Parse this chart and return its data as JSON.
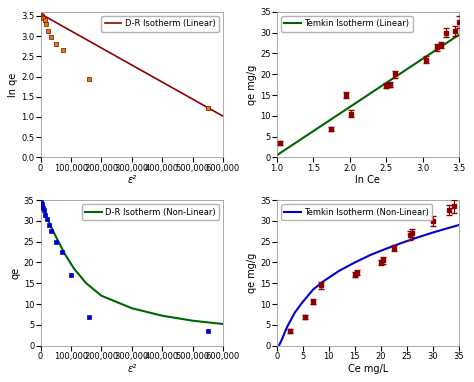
{
  "dr_linear": {
    "title": "D-R Isotherm (Linear)",
    "xlabel": "ε²",
    "ylabel": "ln qe",
    "line_color": "#8B0000",
    "point_color": "#CC8800",
    "point_edge": "#8B0000",
    "xlim": [
      0,
      600000
    ],
    "ylim": [
      0.0,
      3.6
    ],
    "scatter_x": [
      1000,
      3000,
      6000,
      9000,
      13000,
      18000,
      25000,
      35000,
      50000,
      75000,
      160000,
      550000
    ],
    "scatter_y": [
      3.52,
      3.5,
      3.47,
      3.44,
      3.4,
      3.3,
      3.13,
      2.98,
      2.8,
      2.66,
      1.93,
      1.22
    ],
    "line_x": [
      0,
      600000
    ],
    "line_y": [
      3.55,
      1.02
    ]
  },
  "temkin_linear": {
    "title": "Temkin Isotherm (Linear)",
    "xlabel": "ln Ce",
    "ylabel": "qe mg/g",
    "line_color": "#006400",
    "point_color": "#8B0000",
    "xlim": [
      1.0,
      3.5
    ],
    "ylim": [
      0,
      35
    ],
    "scatter_x": [
      1.05,
      1.75,
      1.95,
      2.02,
      2.5,
      2.55,
      2.62,
      3.05,
      3.2,
      3.25,
      3.32,
      3.45,
      3.5
    ],
    "scatter_y": [
      3.5,
      6.8,
      15.0,
      10.5,
      17.2,
      17.5,
      20.0,
      23.5,
      26.5,
      27.0,
      30.0,
      30.5,
      32.5
    ],
    "line_x": [
      1.0,
      3.5
    ],
    "line_y": [
      0.5,
      29.5
    ],
    "yerr": [
      0.5,
      0.5,
      0.8,
      0.8,
      0.6,
      0.6,
      0.8,
      0.8,
      0.8,
      0.8,
      1.0,
      1.2,
      1.5
    ]
  },
  "dr_nonlinear": {
    "title": "D-R Isotherm (Non-Linear)",
    "xlabel": "ε²",
    "ylabel": "qe",
    "line_color": "#006400",
    "point_color": "#0000CD",
    "xlim": [
      0,
      600000
    ],
    "ylim": [
      0,
      35
    ],
    "scatter_x": [
      1000,
      3000,
      5000,
      8000,
      11000,
      15000,
      20000,
      27000,
      35000,
      50000,
      70000,
      100000,
      160000,
      550000
    ],
    "scatter_y": [
      34.5,
      34.0,
      33.5,
      33.0,
      32.5,
      31.5,
      30.5,
      29.0,
      27.5,
      25.0,
      22.5,
      17.0,
      7.0,
      3.5
    ],
    "curve_x": [
      500,
      2000,
      5000,
      10000,
      20000,
      35000,
      55000,
      80000,
      110000,
      150000,
      200000,
      300000,
      400000,
      500000,
      600000
    ],
    "curve_y": [
      34.9,
      34.6,
      34.0,
      33.0,
      31.0,
      28.5,
      25.5,
      22.0,
      18.5,
      15.0,
      12.0,
      9.0,
      7.2,
      6.0,
      5.2
    ]
  },
  "temkin_nonlinear": {
    "title": "Temkin Isotherm (Non-Linear)",
    "xlabel": "Ce mg/L",
    "ylabel": "qe mg/g",
    "line_color": "#0000CD",
    "point_color": "#8B0000",
    "xlim": [
      0,
      35
    ],
    "ylim": [
      0,
      35
    ],
    "scatter_x": [
      2.5,
      5.5,
      7.0,
      8.5,
      15.0,
      15.5,
      20.0,
      20.5,
      22.5,
      25.5,
      26.0,
      30.0,
      33.0,
      34.0
    ],
    "scatter_y": [
      3.5,
      6.8,
      10.5,
      14.5,
      17.0,
      17.5,
      20.0,
      20.5,
      23.5,
      26.5,
      27.0,
      30.0,
      32.5,
      33.5
    ],
    "curve_x": [
      0.5,
      1.0,
      2.0,
      3.5,
      5.0,
      7.0,
      9.0,
      12.0,
      15.0,
      18.0,
      21.0,
      24.0,
      27.0,
      30.0,
      33.0,
      35.0
    ],
    "curve_y": [
      0.2,
      1.5,
      4.5,
      8.0,
      10.5,
      13.5,
      15.5,
      18.0,
      20.0,
      21.8,
      23.3,
      24.7,
      26.0,
      27.2,
      28.3,
      29.0
    ],
    "yerr": [
      0.5,
      0.5,
      0.6,
      0.8,
      0.6,
      0.6,
      0.7,
      0.8,
      0.8,
      1.0,
      1.0,
      1.2,
      1.2,
      1.5
    ]
  },
  "bg_color": "#ffffff",
  "legend_fontsize": 6,
  "tick_fontsize": 6,
  "label_fontsize": 7
}
